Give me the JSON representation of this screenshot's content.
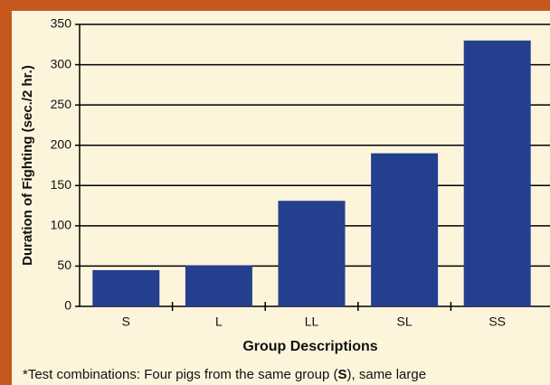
{
  "chart_data": {
    "type": "bar",
    "ylabel": "Duration of Fighting (sec./2 hr.)",
    "xlabel": "Group Descriptions",
    "categories": [
      "S",
      "L",
      "LL",
      "SL",
      "SS"
    ],
    "values": [
      45,
      51,
      131,
      190,
      330
    ],
    "color": "#243f8e",
    "ylim": [
      0,
      350
    ],
    "yticks": [
      0,
      50,
      100,
      150,
      200,
      250,
      300,
      350
    ],
    "grid": true,
    "footnote": [
      "*Test combinations: Four pigs from the same group (",
      "S",
      "), same large"
    ]
  }
}
